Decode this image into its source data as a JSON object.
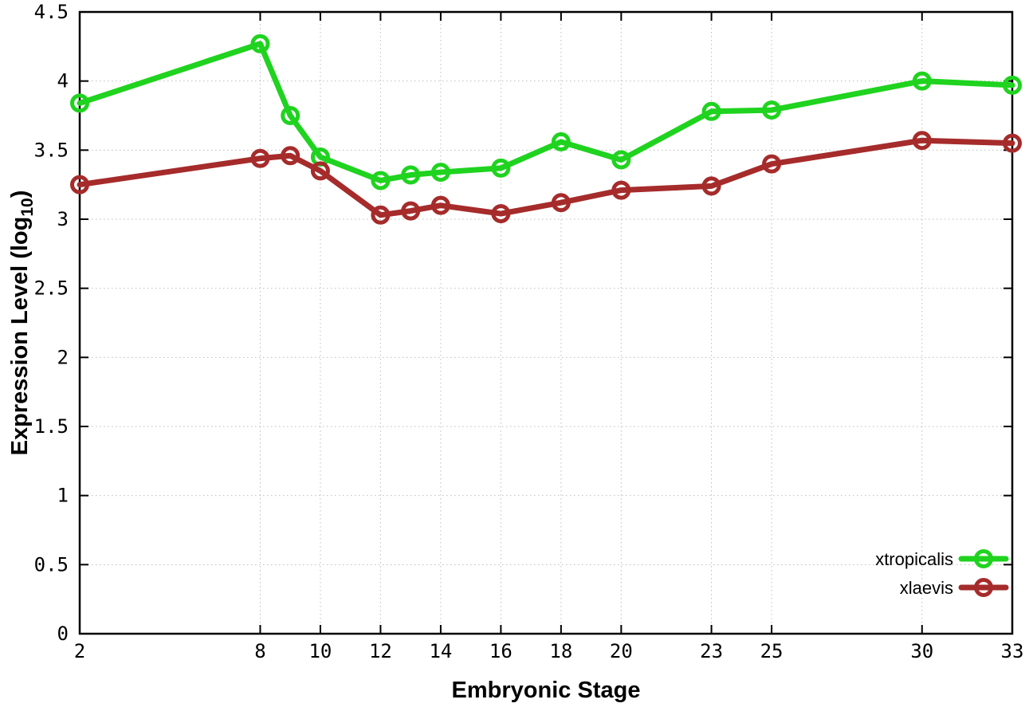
{
  "figure": {
    "background": "#ffffff",
    "border_color": "#000000",
    "grid_color": "#bdbdbd"
  },
  "chart_data": {
    "type": "line",
    "title": "",
    "xlabel": "Embryonic Stage",
    "ylabel": {
      "prefix": "Expression Level (log",
      "sub": "10",
      "suffix": ")"
    },
    "xlim": [
      2,
      33
    ],
    "ylim": [
      0,
      4.5
    ],
    "xticks": [
      2,
      8,
      10,
      12,
      14,
      16,
      18,
      20,
      23,
      25,
      30,
      33
    ],
    "yticks": [
      0,
      0.5,
      1,
      1.5,
      2,
      2.5,
      3,
      3.5,
      4,
      4.5
    ],
    "grid": true,
    "marker": "open-circle",
    "legend_position": "bottom-right",
    "x": [
      2,
      8,
      9,
      10,
      12,
      13,
      14,
      16,
      18,
      20,
      23,
      25,
      30,
      33
    ],
    "series": [
      {
        "name": "xtropicalis",
        "color": "#1fd31f",
        "values": [
          3.84,
          4.27,
          3.75,
          3.45,
          3.28,
          3.32,
          3.34,
          3.37,
          3.56,
          3.43,
          3.78,
          3.79,
          4.0,
          3.97
        ]
      },
      {
        "name": "xlaevis",
        "color": "#a62b2b",
        "values": [
          3.25,
          3.44,
          3.46,
          3.35,
          3.03,
          3.06,
          3.1,
          3.04,
          3.12,
          3.21,
          3.24,
          3.4,
          3.57,
          3.55
        ]
      }
    ]
  }
}
